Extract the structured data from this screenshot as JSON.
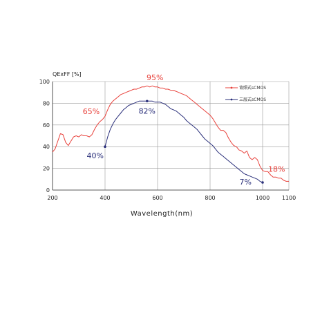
{
  "chart_data": {
    "type": "line",
    "ylabel": "QExFF [%]",
    "xlabel": "Wavelength(nm)",
    "xlim": [
      200,
      1100
    ],
    "ylim": [
      0,
      100
    ],
    "x_ticks": [
      200,
      400,
      600,
      800,
      1000,
      1100
    ],
    "y_ticks": [
      0,
      20,
      40,
      60,
      80,
      100
    ],
    "grid": true,
    "legend_position": "top-right",
    "colors": {
      "red": "#e8403a",
      "blue": "#2a2f7a",
      "grid": "#9a9a9a",
      "axis": "#333333"
    },
    "series": [
      {
        "name": "背照式sCMOS",
        "color": "#e8403a",
        "x": [
          200,
          210,
          220,
          230,
          240,
          250,
          260,
          270,
          280,
          290,
          300,
          310,
          320,
          330,
          340,
          350,
          360,
          370,
          380,
          390,
          400,
          410,
          420,
          430,
          440,
          450,
          460,
          470,
          480,
          490,
          500,
          510,
          520,
          530,
          540,
          550,
          560,
          570,
          580,
          590,
          600,
          610,
          620,
          630,
          640,
          650,
          660,
          670,
          680,
          690,
          700,
          710,
          720,
          730,
          740,
          750,
          760,
          770,
          780,
          790,
          800,
          810,
          820,
          830,
          840,
          850,
          860,
          870,
          880,
          890,
          900,
          910,
          920,
          930,
          940,
          950,
          960,
          970,
          980,
          990,
          1000,
          1010,
          1020,
          1030,
          1040,
          1050,
          1060,
          1070,
          1080,
          1090,
          1100
        ],
        "values": [
          35,
          38,
          45,
          52,
          51,
          44,
          41,
          45,
          49,
          50,
          49,
          51,
          50,
          50,
          49,
          51,
          56,
          60,
          63,
          65,
          68,
          74,
          79,
          82,
          84,
          86,
          88,
          89,
          90,
          91,
          92,
          93,
          93,
          94,
          95,
          95,
          96,
          95,
          96,
          95,
          95,
          94,
          94,
          93,
          93,
          92,
          92,
          91,
          90,
          89,
          88,
          87,
          85,
          83,
          81,
          79,
          77,
          75,
          73,
          71,
          69,
          66,
          62,
          58,
          55,
          55,
          53,
          48,
          44,
          41,
          40,
          37,
          36,
          34,
          36,
          30,
          28,
          30,
          28,
          22,
          18,
          17,
          17,
          14,
          12,
          12,
          11,
          11,
          9,
          8,
          8
        ]
      },
      {
        "name": "三层式sCMOS",
        "color": "#2a2f7a",
        "x": [
          400,
          410,
          420,
          430,
          440,
          450,
          460,
          470,
          480,
          490,
          500,
          510,
          520,
          530,
          540,
          550,
          560,
          570,
          580,
          590,
          600,
          610,
          620,
          630,
          640,
          650,
          660,
          670,
          680,
          690,
          700,
          710,
          720,
          730,
          740,
          750,
          760,
          770,
          780,
          790,
          800,
          810,
          820,
          830,
          840,
          850,
          860,
          870,
          880,
          890,
          900,
          910,
          920,
          930,
          940,
          950,
          960,
          970,
          980,
          990,
          1000
        ],
        "values": [
          40,
          49,
          56,
          61,
          65,
          68,
          71,
          74,
          76,
          78,
          79,
          80,
          81,
          82,
          82,
          82,
          82,
          82,
          82,
          81,
          81,
          81,
          80,
          79,
          77,
          75,
          74,
          73,
          71,
          69,
          67,
          64,
          62,
          60,
          58,
          56,
          53,
          50,
          47,
          45,
          43,
          41,
          38,
          35,
          33,
          31,
          29,
          27,
          25,
          23,
          21,
          19,
          17,
          15,
          14,
          13,
          12,
          11,
          10,
          8,
          7
        ]
      }
    ],
    "annotations": [
      {
        "text": "95%",
        "series": 0,
        "x": 590,
        "y": 95
      },
      {
        "text": "65%",
        "series": 0,
        "x": 390,
        "y": 65
      },
      {
        "text": "18%",
        "series": 0,
        "x": 1000,
        "y": 18
      },
      {
        "text": "82%",
        "series": 1,
        "x": 560,
        "y": 82
      },
      {
        "text": "40%",
        "series": 1,
        "x": 400,
        "y": 40
      },
      {
        "text": "7%",
        "series": 1,
        "x": 1000,
        "y": 7
      }
    ]
  }
}
